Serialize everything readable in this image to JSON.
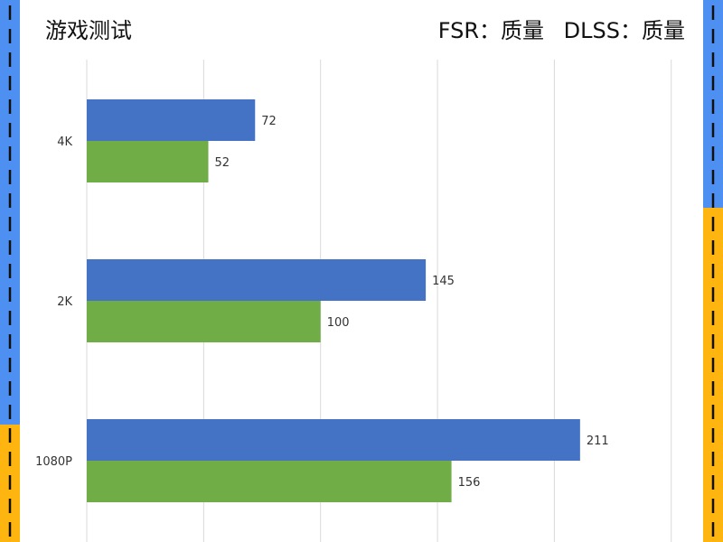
{
  "header": {
    "title": "游戏测试",
    "settings_left": "FSR：质量",
    "settings_right": "DLSS：质量"
  },
  "colors": {
    "series_fsr": "#4472C4",
    "series_dlss": "#70AD47",
    "side_blue": "#4E90F2",
    "side_yellow": "#FFB510",
    "side_dash": "#111111",
    "grid": "#D9D9D9"
  },
  "chart_data": {
    "type": "bar",
    "orientation": "horizontal",
    "categories": [
      "4K",
      "2K",
      "1080P"
    ],
    "series": [
      {
        "values": [
          72,
          145,
          211
        ]
      },
      {
        "values": [
          52,
          100,
          156
        ]
      }
    ],
    "xlim": [
      0,
      250
    ],
    "grid": true,
    "legend": "none"
  }
}
